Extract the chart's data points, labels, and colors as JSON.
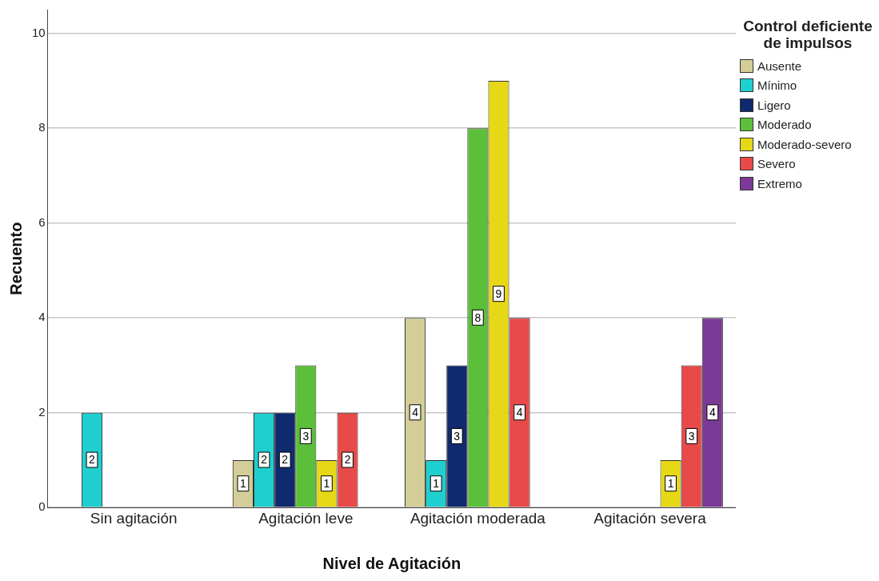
{
  "chart_data": {
    "type": "bar",
    "xlabel": "Nivel de Agitación",
    "ylabel": "Recuento",
    "legend_title": "Control deficiente de impulsos",
    "categories": [
      "Sin agitación",
      "Agitación leve",
      "Agitación moderada",
      "Agitación severa"
    ],
    "series": [
      {
        "name": "Ausente",
        "color": "#d3ce97",
        "values": [
          null,
          1,
          4,
          null
        ]
      },
      {
        "name": "Mínimo",
        "color": "#1fcfcf",
        "values": [
          2,
          2,
          1,
          null
        ]
      },
      {
        "name": "Ligero",
        "color": "#0f2a6e",
        "values": [
          null,
          2,
          3,
          null
        ]
      },
      {
        "name": "Moderado",
        "color": "#5cbf3a",
        "values": [
          null,
          3,
          8,
          null
        ]
      },
      {
        "name": "Moderado-severo",
        "color": "#e6d817",
        "values": [
          null,
          1,
          9,
          1
        ]
      },
      {
        "name": "Severo",
        "color": "#e84a4a",
        "values": [
          null,
          2,
          4,
          3
        ]
      },
      {
        "name": "Extremo",
        "color": "#7b3a96",
        "values": [
          null,
          null,
          null,
          4
        ]
      }
    ],
    "ylim": [
      0,
      10.5
    ],
    "yticks": [
      0,
      2,
      4,
      6,
      8,
      10
    ],
    "grid": "y",
    "legend": "top right",
    "data_labels": true
  }
}
